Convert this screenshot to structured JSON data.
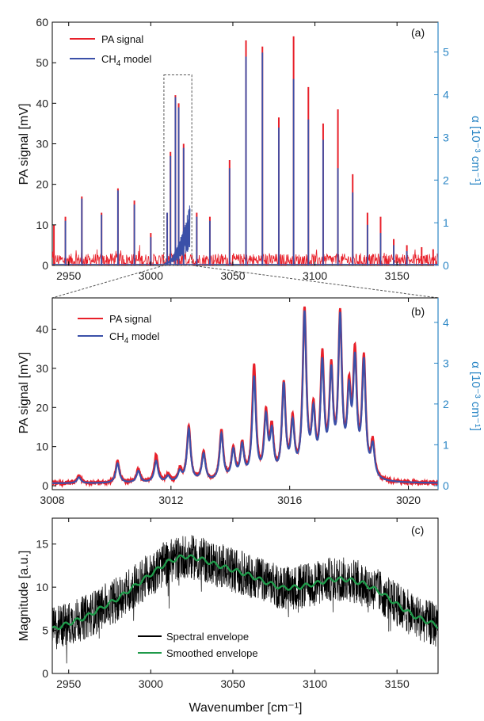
{
  "chart_data": [
    {
      "panel": "(a)",
      "type": "line",
      "xlim": [
        2940,
        3175
      ],
      "ylim": [
        0,
        60
      ],
      "y2lim": [
        0,
        5.7
      ],
      "xticks": [
        2950,
        3000,
        3050,
        3100,
        3150
      ],
      "yticks": [
        0,
        10,
        20,
        30,
        40,
        50,
        60
      ],
      "y2ticks": [
        0,
        1,
        2,
        3,
        4,
        5
      ],
      "ylabel": "PA signal  [mV]",
      "y2label": "α  [10⁻³ cm⁻¹]",
      "legend_placement": "top-left",
      "zoom_box": [
        3008,
        3025,
        0,
        47
      ],
      "series": [
        {
          "name": "PA signal",
          "color": "#e8202a",
          "peaks": [
            [
              2941,
              10
            ],
            [
              2948,
              12
            ],
            [
              2958,
              17
            ],
            [
              2970,
              13
            ],
            [
              2980,
              19
            ],
            [
              2990,
              16
            ],
            [
              3000,
              8
            ],
            [
              3010,
              13
            ],
            [
              3012,
              28
            ],
            [
              3015,
              42
            ],
            [
              3017,
              40
            ],
            [
              3020,
              30
            ],
            [
              3028,
              13
            ],
            [
              3036,
              12
            ],
            [
              3048,
              26
            ],
            [
              3058,
              55.5
            ],
            [
              3068,
              54
            ],
            [
              3078,
              36.5
            ],
            [
              3087,
              56.5
            ],
            [
              3096,
              44
            ],
            [
              3105,
              35
            ],
            [
              3114,
              38.5
            ],
            [
              3123,
              22.5
            ],
            [
              3132,
              13
            ],
            [
              3140,
              12
            ],
            [
              3148,
              6.5
            ],
            [
              3156,
              5
            ],
            [
              3165,
              4.5
            ],
            [
              3172,
              4
            ]
          ]
        },
        {
          "name": "CH4 model",
          "color": "#3b50a8",
          "peaks": [
            [
              2948,
              11
            ],
            [
              2958,
              16.5
            ],
            [
              2970,
              12.5
            ],
            [
              2980,
              18.5
            ],
            [
              2990,
              15
            ],
            [
              3000,
              7
            ],
            [
              3010,
              13
            ],
            [
              3012,
              27
            ],
            [
              3015,
              41.5
            ],
            [
              3017,
              39
            ],
            [
              3020,
              29
            ],
            [
              3028,
              12
            ],
            [
              3036,
              11
            ],
            [
              3048,
              24
            ],
            [
              3058,
              51.5
            ],
            [
              3068,
              52.5
            ],
            [
              3078,
              34
            ],
            [
              3087,
              46
            ],
            [
              3096,
              36
            ],
            [
              3105,
              31
            ],
            [
              3114,
              24
            ],
            [
              3123,
              18
            ],
            [
              3132,
              10
            ],
            [
              3140,
              8
            ],
            [
              3148,
              5
            ],
            [
              3156,
              3.5
            ]
          ]
        }
      ]
    },
    {
      "panel": "(b)",
      "type": "line",
      "xlim": [
        3008,
        3021
      ],
      "ylim": [
        -1,
        48
      ],
      "y2lim": [
        -0.1,
        4.6
      ],
      "xticks": [
        3008,
        3012,
        3016,
        3020
      ],
      "yticks": [
        0,
        10,
        20,
        30,
        40
      ],
      "y2ticks": [
        0,
        1,
        2,
        3,
        4
      ],
      "ylabel": "PA signal  [mV]",
      "y2label": "α  [10⁻³ cm⁻¹]",
      "legend_placement": "top-left",
      "series": [
        {
          "name": "PA signal",
          "color": "#e8202a",
          "peaks": [
            [
              3008.9,
              2
            ],
            [
              3010.2,
              5.5
            ],
            [
              3010.9,
              3.5
            ],
            [
              3011.5,
              7
            ],
            [
              3011.9,
              2
            ],
            [
              3012.3,
              3
            ],
            [
              3012.6,
              14
            ],
            [
              3013.1,
              7.5
            ],
            [
              3013.7,
              13
            ],
            [
              3014.1,
              8
            ],
            [
              3014.4,
              9
            ],
            [
              3014.8,
              29
            ],
            [
              3015.2,
              16
            ],
            [
              3015.4,
              12
            ],
            [
              3015.8,
              24
            ],
            [
              3016.1,
              14
            ],
            [
              3016.5,
              42.5
            ],
            [
              3016.8,
              16
            ],
            [
              3017.1,
              30
            ],
            [
              3017.4,
              26
            ],
            [
              3017.7,
              40
            ],
            [
              3018.0,
              20
            ],
            [
              3018.2,
              30
            ],
            [
              3018.5,
              30
            ],
            [
              3018.8,
              9
            ]
          ]
        },
        {
          "name": "CH4 model",
          "color": "#3b50a8",
          "peaks": [
            [
              3008.9,
              1.5
            ],
            [
              3010.2,
              5
            ],
            [
              3010.9,
              3
            ],
            [
              3011.5,
              5.5
            ],
            [
              3011.9,
              1.5
            ],
            [
              3012.3,
              2.5
            ],
            [
              3012.6,
              13.5
            ],
            [
              3013.1,
              7
            ],
            [
              3013.7,
              12
            ],
            [
              3014.1,
              7.5
            ],
            [
              3014.4,
              8.5
            ],
            [
              3014.8,
              26
            ],
            [
              3015.2,
              15
            ],
            [
              3015.4,
              11
            ],
            [
              3015.8,
              23.5
            ],
            [
              3016.1,
              13
            ],
            [
              3016.5,
              41.5
            ],
            [
              3016.8,
              15
            ],
            [
              3017.1,
              28
            ],
            [
              3017.4,
              25
            ],
            [
              3017.7,
              39.5
            ],
            [
              3018.0,
              19
            ],
            [
              3018.2,
              28
            ],
            [
              3018.5,
              29
            ],
            [
              3018.8,
              8
            ]
          ]
        }
      ]
    },
    {
      "panel": "(c)",
      "type": "line",
      "xlim": [
        2940,
        3175
      ],
      "ylim": [
        0,
        18
      ],
      "xticks": [
        2950,
        3000,
        3050,
        3100,
        3150
      ],
      "yticks": [
        0,
        5,
        10,
        15
      ],
      "xlabel": "Wavenumber  [cm⁻¹]",
      "ylabel": "Magnitude  [a.u.]",
      "legend_placement": "bottom-center",
      "series": [
        {
          "name": "Spectral envelope",
          "color": "#000000"
        },
        {
          "name": "Smoothed envelope",
          "color": "#1f9a4a",
          "x": [
            2940,
            2960,
            2980,
            3000,
            3010,
            3020,
            3030,
            3040,
            3050,
            3060,
            3070,
            3080,
            3090,
            3100,
            3110,
            3120,
            3130,
            3140,
            3150,
            3160,
            3175
          ],
          "values": [
            5.1,
            6.5,
            8.7,
            11.5,
            12.9,
            13.6,
            13.3,
            12.6,
            12.0,
            11.4,
            10.6,
            9.9,
            10.0,
            10.4,
            10.9,
            10.9,
            10.4,
            9.4,
            8.0,
            6.7,
            5.5
          ]
        }
      ]
    }
  ]
}
